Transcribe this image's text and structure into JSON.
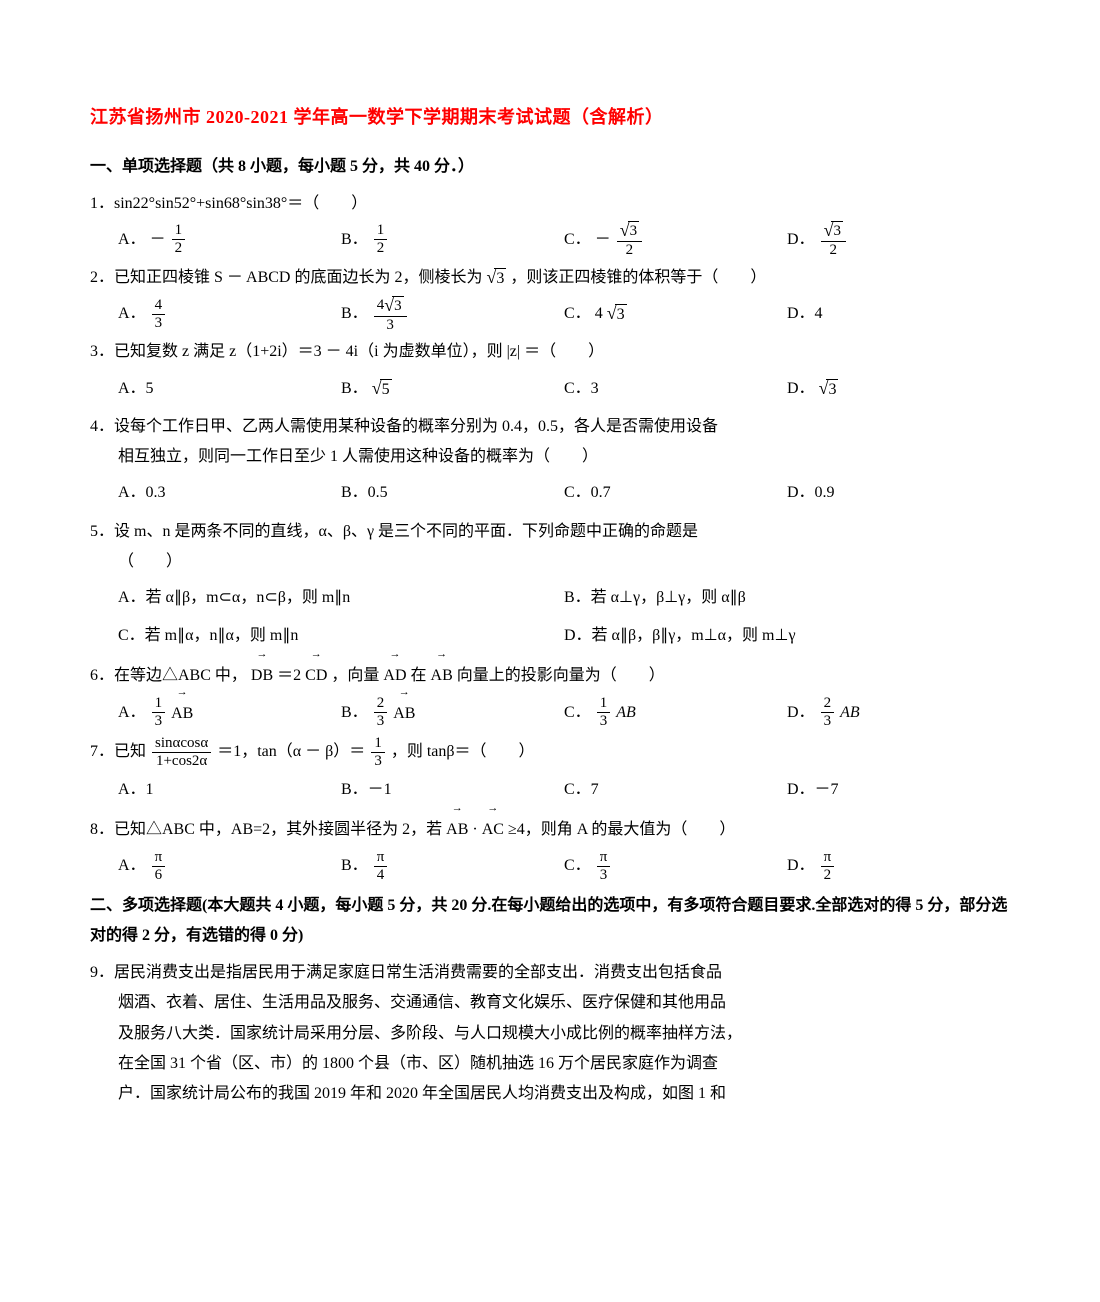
{
  "title": "江苏省扬州市 2020-2021 学年高一数学下学期期末考试试题（含解析）",
  "section1_header": "一、单项选择题（共 8 小题，每小题 5 分，共 40 分．）",
  "section2_header": "二、多项选择题(本大题共 4 小题，每小题 5 分，共 20 分.在每小题给出的选项中，有多项符合题目要求.全部选对的得 5 分，部分选对的得 2 分，有选错的得 0 分)",
  "q1": {
    "text": "1．sin22°sin52°+sin68°sin38°＝（　　）",
    "A": "A．",
    "B": "B．",
    "C": "C．",
    "D": "D．"
  },
  "q2": {
    "text_prefix": "2．已知正四棱锥 S － ABCD 的底面边长为 2，侧棱长为",
    "text_suffix": "，则该正四棱锥的体积等于（　　）",
    "A": "A．",
    "B": "B．",
    "C": "C．",
    "D": "D．4",
    "C_val": "4"
  },
  "q3": {
    "text": "3．已知复数 z 满足 z（1+2i）＝3 － 4i（i 为虚数单位），则 |z| ＝（　　）",
    "A": "A．5",
    "B": "B．",
    "C": "C．3",
    "D": "D．",
    "B_val": "5",
    "D_val": "3"
  },
  "q4": {
    "line1": "4．设每个工作日甲、乙两人需使用某种设备的概率分别为 0.4，0.5，各人是否需使用设备",
    "line2": "相互独立，则同一工作日至少 1 人需使用这种设备的概率为（　　）",
    "A": "A．0.3",
    "B": "B．0.5",
    "C": "C．0.7",
    "D": "D．0.9"
  },
  "q5": {
    "line1": "5．设 m、n 是两条不同的直线，α、β、γ 是三个不同的平面．下列命题中正确的命题是",
    "line2": "（　　）",
    "A": "A．若 α∥β，m⊂α，n⊂β，则 m∥n",
    "B": "B．若 α⊥γ，β⊥γ，则 α∥β",
    "C": "C．若 m∥α，n∥α，则 m∥n",
    "D": "D．若 α∥β，β∥γ，m⊥α，则 m⊥γ"
  },
  "q6": {
    "text_prefix": "6．在等边△ABC 中，",
    "text_mid1": "＝2",
    "text_mid2": "，向量",
    "text_mid3": "在",
    "text_suffix": "向量上的投影向量为（　　）",
    "db": "DB",
    "cd": "CD",
    "ad": "AD",
    "ab": "AB",
    "A": "A．",
    "B": "B．",
    "C": "C．",
    "D": "D．",
    "C_suffix": "AB",
    "D_suffix": "AB"
  },
  "q7": {
    "text_prefix": "7．已知",
    "num": "sinαcosα",
    "den": "1+cos2α",
    "text_mid1": "＝1，tan（α － β）＝",
    "f2_num": "1",
    "f2_den": "3",
    "text_suffix": "，则 tanβ＝（　　）",
    "A": "A．1",
    "B": "B．－1",
    "C": "C．7",
    "D": "D．－7"
  },
  "q8": {
    "text_prefix": "8．已知△ABC 中，AB=2，其外接圆半径为 2，若",
    "ab": "AB",
    "ac": "AC",
    "text_mid": "·",
    "text_suffix": "≥4，则角 A 的最大值为（　　）",
    "A": "A．",
    "B": "B．",
    "C": "C．",
    "D": "D．",
    "den_a": "6",
    "den_b": "4",
    "den_c": "3",
    "den_d": "2",
    "pi": "π"
  },
  "q9": {
    "line1": "9．居民消费支出是指居民用于满足家庭日常生活消费需要的全部支出．消费支出包括食品",
    "line2": "烟酒、衣着、居住、生活用品及服务、交通通信、教育文化娱乐、医疗保健和其他用品",
    "line3": "及服务八大类．国家统计局采用分层、多阶段、与人口规模大小成比例的概率抽样方法，",
    "line4": "在全国 31 个省（区、市）的 1800 个县（市、区）随机抽选 16 万个居民家庭作为调查",
    "line5": "户．国家统计局公布的我国 2019 年和 2020 年全国居民人均消费支出及构成，如图 1 和"
  }
}
